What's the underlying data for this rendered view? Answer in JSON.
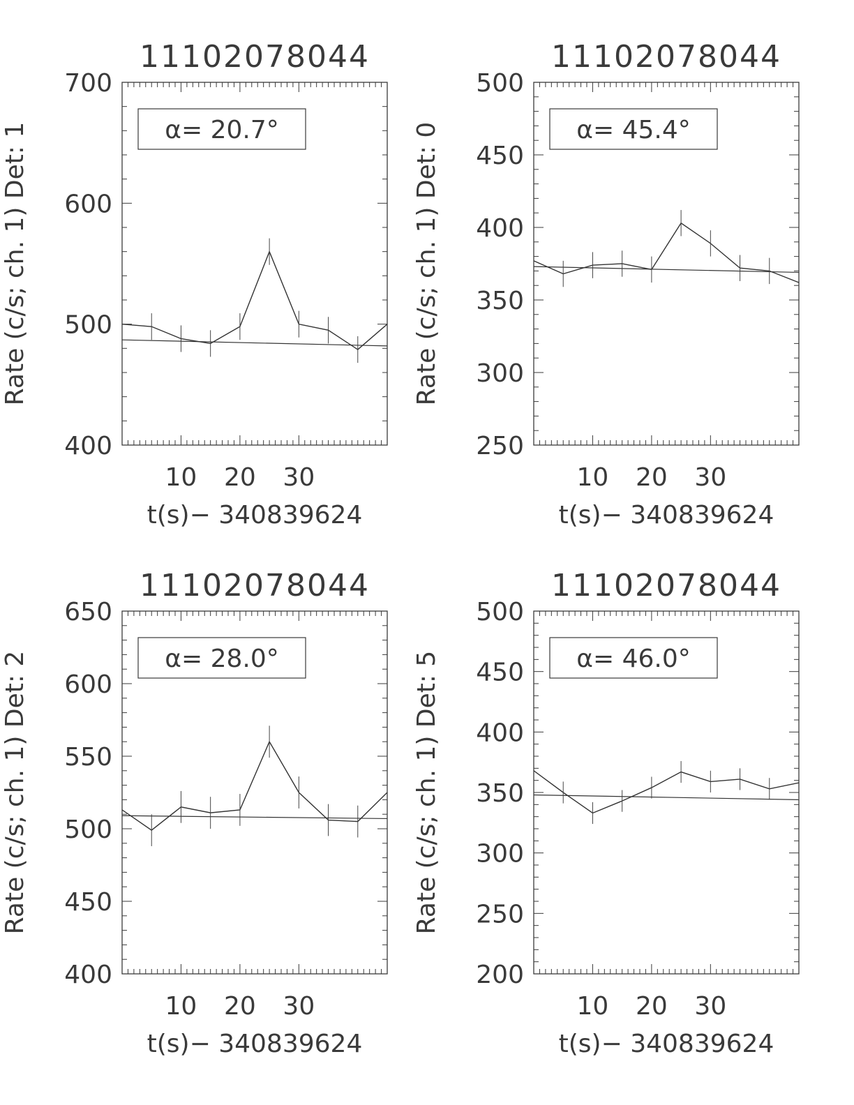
{
  "chart_data": [
    {
      "type": "line",
      "title": "11102078044",
      "ylabel": "Rate (c/s; ch. 1) Det: 1",
      "xlabel": "t(s)− 340839624",
      "annotation": "α= 20.7°",
      "xlim": [
        0,
        45
      ],
      "ylim": [
        400,
        700
      ],
      "xticks": [
        10,
        20,
        30
      ],
      "yticks": [
        400,
        500,
        600,
        700
      ],
      "x": [
        0,
        5,
        10,
        15,
        20,
        25,
        30,
        35,
        40,
        45
      ],
      "series": [
        {
          "values": [
            500,
            498,
            488,
            484,
            498,
            560,
            500,
            495,
            479,
            500
          ],
          "errors": [
            0,
            11,
            11,
            11,
            11,
            11,
            11,
            11,
            11,
            0
          ]
        }
      ],
      "fit": {
        "x": [
          0,
          45
        ],
        "y": [
          487,
          482
        ]
      }
    },
    {
      "type": "line",
      "title": "11102078044",
      "ylabel": "Rate (c/s; ch. 1) Det: 0",
      "xlabel": "t(s)− 340839624",
      "annotation": "α= 45.4°",
      "xlim": [
        0,
        45
      ],
      "ylim": [
        250,
        500
      ],
      "xticks": [
        10,
        20,
        30
      ],
      "yticks": [
        250,
        300,
        350,
        400,
        450,
        500
      ],
      "x": [
        0,
        5,
        10,
        15,
        20,
        25,
        30,
        35,
        40,
        45
      ],
      "series": [
        {
          "values": [
            377,
            368,
            374,
            375,
            371,
            403,
            389,
            372,
            370,
            362
          ],
          "errors": [
            0,
            9,
            9,
            9,
            9,
            9,
            9,
            9,
            9,
            0
          ]
        }
      ],
      "fit": {
        "x": [
          0,
          45
        ],
        "y": [
          373,
          369
        ]
      }
    },
    {
      "type": "line",
      "title": "11102078044",
      "ylabel": "Rate (c/s; ch. 1) Det: 2",
      "xlabel": "t(s)− 340839624",
      "annotation": "α= 28.0°",
      "xlim": [
        0,
        45
      ],
      "ylim": [
        400,
        650
      ],
      "xticks": [
        10,
        20,
        30
      ],
      "yticks": [
        400,
        450,
        500,
        550,
        600,
        650
      ],
      "x": [
        0,
        5,
        10,
        15,
        20,
        25,
        30,
        35,
        40,
        45
      ],
      "series": [
        {
          "values": [
            513,
            499,
            515,
            511,
            513,
            560,
            525,
            506,
            505,
            525
          ],
          "errors": [
            0,
            11,
            11,
            11,
            11,
            11,
            11,
            11,
            11,
            0
          ]
        }
      ],
      "fit": {
        "x": [
          0,
          45
        ],
        "y": [
          509,
          507
        ]
      }
    },
    {
      "type": "line",
      "title": "11102078044",
      "ylabel": "Rate (c/s; ch. 1) Det: 5",
      "xlabel": "t(s)− 340839624",
      "annotation": "α= 46.0°",
      "xlim": [
        0,
        45
      ],
      "ylim": [
        200,
        500
      ],
      "xticks": [
        10,
        20,
        30
      ],
      "yticks": [
        200,
        250,
        300,
        350,
        400,
        450,
        500
      ],
      "x": [
        0,
        5,
        10,
        15,
        20,
        25,
        30,
        35,
        40,
        45
      ],
      "series": [
        {
          "values": [
            368,
            350,
            333,
            343,
            354,
            367,
            359,
            361,
            353,
            358
          ],
          "errors": [
            0,
            9,
            9,
            9,
            9,
            9,
            9,
            9,
            9,
            0
          ]
        }
      ],
      "fit": {
        "x": [
          0,
          45
        ],
        "y": [
          348,
          344
        ]
      }
    }
  ]
}
